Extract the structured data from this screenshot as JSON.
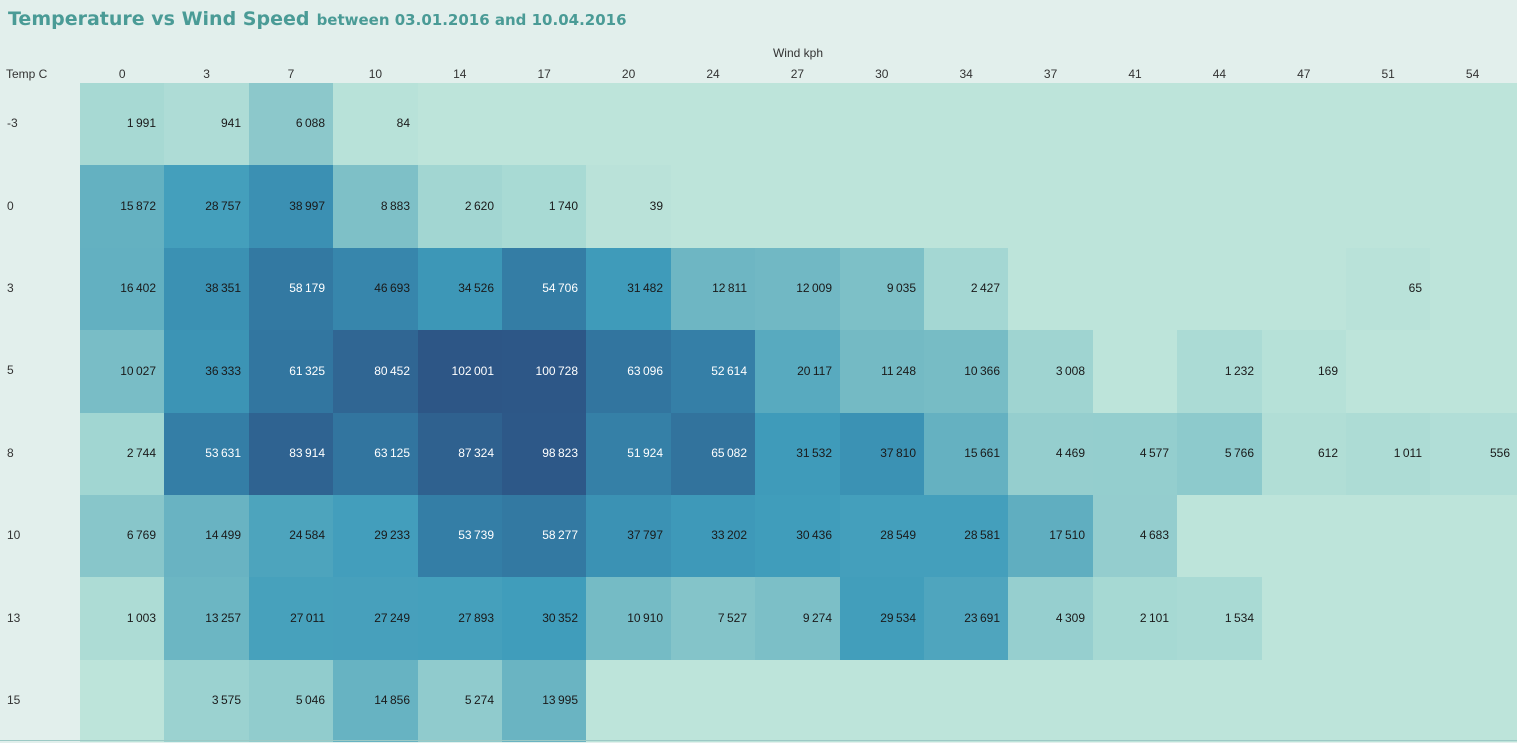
{
  "chart_data": {
    "type": "heatmap",
    "title": "Temperature vs Wind Speed",
    "subtitle": "between 03.01.2016 and 10.04.2016",
    "xlabel": "Wind kph",
    "ylabel": "Temp C",
    "x_categories": [
      "0",
      "3",
      "7",
      "10",
      "14",
      "17",
      "20",
      "24",
      "27",
      "30",
      "34",
      "37",
      "41",
      "44",
      "47",
      "51",
      "54"
    ],
    "y_categories": [
      "-3",
      "0",
      "3",
      "5",
      "8",
      "10",
      "13",
      "15"
    ],
    "values": [
      [
        1991,
        941,
        6088,
        84,
        null,
        null,
        null,
        null,
        null,
        null,
        null,
        null,
        null,
        null,
        null,
        null,
        null
      ],
      [
        15872,
        28757,
        38997,
        8883,
        2620,
        1740,
        39,
        null,
        null,
        null,
        null,
        null,
        null,
        null,
        null,
        null,
        null
      ],
      [
        16402,
        38351,
        58179,
        46693,
        34526,
        54706,
        31482,
        12811,
        12009,
        9035,
        2427,
        null,
        null,
        null,
        null,
        65,
        null
      ],
      [
        10027,
        36333,
        61325,
        80452,
        102001,
        100728,
        63096,
        52614,
        20117,
        11248,
        10366,
        3008,
        null,
        1232,
        169,
        null,
        null
      ],
      [
        2744,
        53631,
        83914,
        63125,
        87324,
        98823,
        51924,
        65082,
        31532,
        37810,
        15661,
        4469,
        4577,
        5766,
        612,
        1011,
        556
      ],
      [
        6769,
        14499,
        24584,
        29233,
        53739,
        58277,
        37797,
        33202,
        30436,
        28549,
        28581,
        17510,
        4683,
        null,
        null,
        null,
        null
      ],
      [
        1003,
        13257,
        27011,
        27249,
        27893,
        30352,
        10910,
        7527,
        9274,
        29534,
        23691,
        4309,
        2101,
        1534,
        null,
        null,
        null
      ],
      [
        null,
        3575,
        5046,
        14856,
        5274,
        13995,
        null,
        null,
        null,
        null,
        null,
        null,
        null,
        null,
        null,
        null,
        null
      ]
    ],
    "value_range": [
      0,
      102001
    ],
    "colors": {
      "low": "#bde4da",
      "high": "#2d5686"
    },
    "grid": false,
    "legend": "none"
  }
}
